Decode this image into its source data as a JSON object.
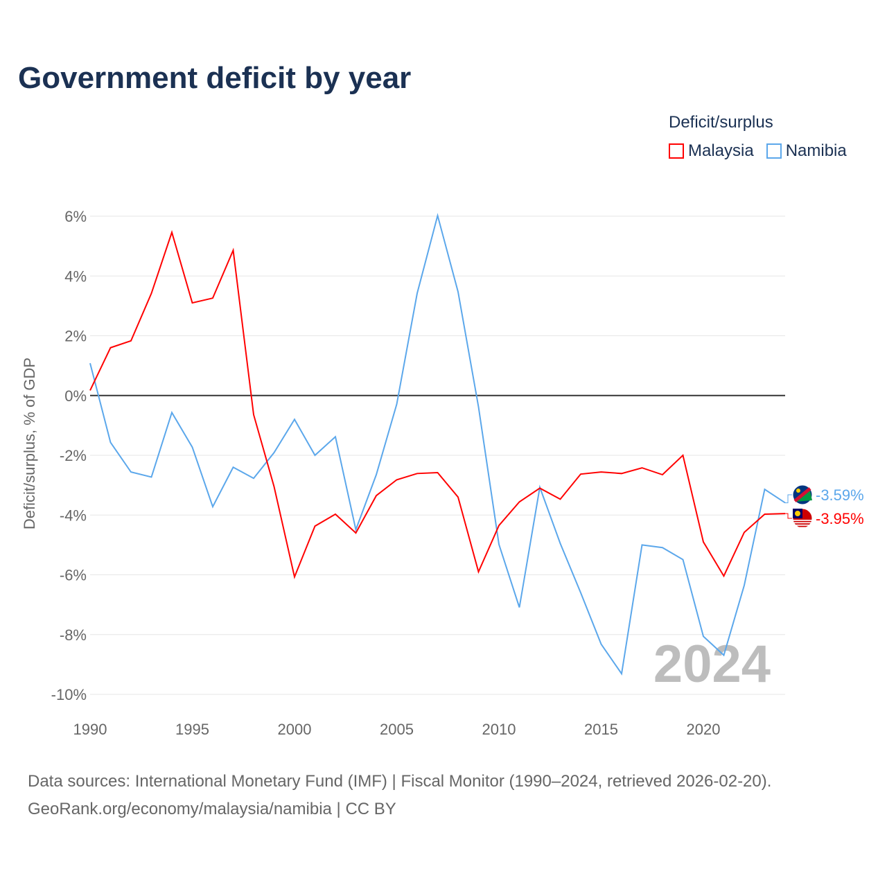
{
  "title": "Government deficit by year",
  "legend": {
    "title": "Deficit/surplus",
    "items": [
      {
        "label": "Malaysia",
        "color": "#ff0000"
      },
      {
        "label": "Namibia",
        "color": "#5ba7eb"
      }
    ]
  },
  "source_line1": "Data sources: International Monetary Fund (IMF) | Fiscal Monitor (1990–2024, retrieved 2026-02-20).",
  "source_line2": "GeoRank.org/economy/malaysia/namibia | CC BY",
  "chart_data": {
    "type": "line",
    "title": "Government deficit by year",
    "ylabel": "Deficit/surplus, % of GDP",
    "xlabel": "",
    "ylim": [
      -10,
      6
    ],
    "xlim": [
      1990,
      2024
    ],
    "yticks": [
      6,
      4,
      2,
      0,
      -2,
      -4,
      -6,
      -8,
      -10
    ],
    "ytick_labels": [
      "6%",
      "4%",
      "2%",
      "0%",
      "-2%",
      "-4%",
      "-6%",
      "-8%",
      "-10%"
    ],
    "xticks": [
      1990,
      1995,
      2000,
      2005,
      2010,
      2015,
      2020
    ],
    "xtick_labels": [
      "1990",
      "1995",
      "2000",
      "2005",
      "2010",
      "2015",
      "2020"
    ],
    "grid": true,
    "legend_position": "top-right",
    "watermark": "2024",
    "x": [
      1990,
      1991,
      1992,
      1993,
      1994,
      1995,
      1996,
      1997,
      1998,
      1999,
      2000,
      2001,
      2002,
      2003,
      2004,
      2005,
      2006,
      2007,
      2008,
      2009,
      2010,
      2011,
      2012,
      2013,
      2014,
      2015,
      2016,
      2017,
      2018,
      2019,
      2020,
      2021,
      2022,
      2023,
      2024
    ],
    "series": [
      {
        "name": "Malaysia",
        "color": "#ff0000",
        "end_label": "-3.95%",
        "values": [
          0.17,
          1.6,
          1.83,
          3.42,
          5.46,
          3.1,
          3.26,
          4.86,
          -0.64,
          -3.05,
          -6.07,
          -4.37,
          -3.97,
          -4.6,
          -3.35,
          -2.82,
          -2.61,
          -2.58,
          -3.4,
          -5.9,
          -4.35,
          -3.56,
          -3.1,
          -3.47,
          -2.63,
          -2.56,
          -2.61,
          -2.42,
          -2.65,
          -2.0,
          -4.9,
          -6.04,
          -4.58,
          -3.97,
          -3.95
        ]
      },
      {
        "name": "Namibia",
        "color": "#5ba7eb",
        "end_label": "-3.59%",
        "values": [
          1.08,
          -1.57,
          -2.56,
          -2.73,
          -0.57,
          -1.73,
          -3.72,
          -2.4,
          -2.77,
          -1.91,
          -0.8,
          -2.0,
          -1.38,
          -4.49,
          -2.65,
          -0.29,
          3.42,
          6.02,
          3.47,
          -0.38,
          -4.98,
          -7.09,
          -3.07,
          -4.95,
          -6.6,
          -8.32,
          -9.31,
          -5.0,
          -5.09,
          -5.49,
          -8.06,
          -8.69,
          -6.35,
          -3.14,
          -3.59
        ]
      }
    ]
  }
}
